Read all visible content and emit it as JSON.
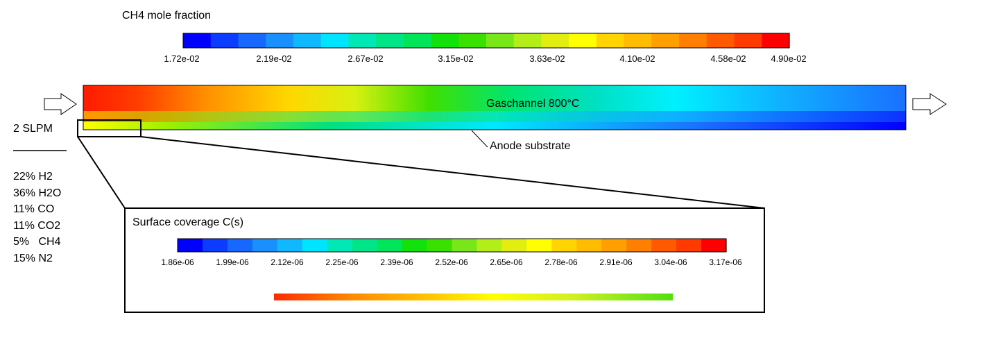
{
  "colorbars": {
    "ch4": {
      "title": "CH4 mole fraction",
      "tick_labels": [
        "1.72e-02",
        "2.19e-02",
        "2.67e-02",
        "3.15e-02",
        "3.63e-02",
        "4.10e-02",
        "4.58e-02",
        "4.90e-02"
      ],
      "colors": [
        "#0000ff",
        "#0b3cff",
        "#1668ff",
        "#1a90ff",
        "#10b8ff",
        "#00e5ff",
        "#00e8b6",
        "#00e588",
        "#00e55a",
        "#13e10b",
        "#3ae000",
        "#79e61a",
        "#b3ee18",
        "#e2ee10",
        "#ffff00",
        "#ffd400",
        "#ffbc00",
        "#ff9f00",
        "#ff7f00",
        "#ff5a00",
        "#ff3a00",
        "#ff0000"
      ]
    },
    "carbon": {
      "title": "Surface coverage C(s)",
      "tick_labels": [
        "1.86e-06",
        "1.99e-06",
        "2.12e-06",
        "2.25e-06",
        "2.39e-06",
        "2.52e-06",
        "2.65e-06",
        "2.78e-06",
        "2.91e-06",
        "3.04e-06",
        "3.17e-06"
      ],
      "colors": [
        "#0000ff",
        "#0b3cff",
        "#1668ff",
        "#1a90ff",
        "#10b8ff",
        "#00e5ff",
        "#00e8b6",
        "#00e588",
        "#00e55a",
        "#13e10b",
        "#3ae000",
        "#79e61a",
        "#b3ee18",
        "#e2ee10",
        "#ffff00",
        "#ffd400",
        "#ffbc00",
        "#ff9f00",
        "#ff7f00",
        "#ff5a00",
        "#ff3a00",
        "#ff0000"
      ]
    }
  },
  "channel": {
    "label": "Gaschannel 800°C",
    "substrate_label": "Anode substrate"
  },
  "inlet": {
    "flow": "2 SLPM",
    "composition": [
      "22% H2",
      "36% H2O",
      "11% CO",
      "11% CO2",
      "5%   CH4",
      "15% N2"
    ]
  }
}
